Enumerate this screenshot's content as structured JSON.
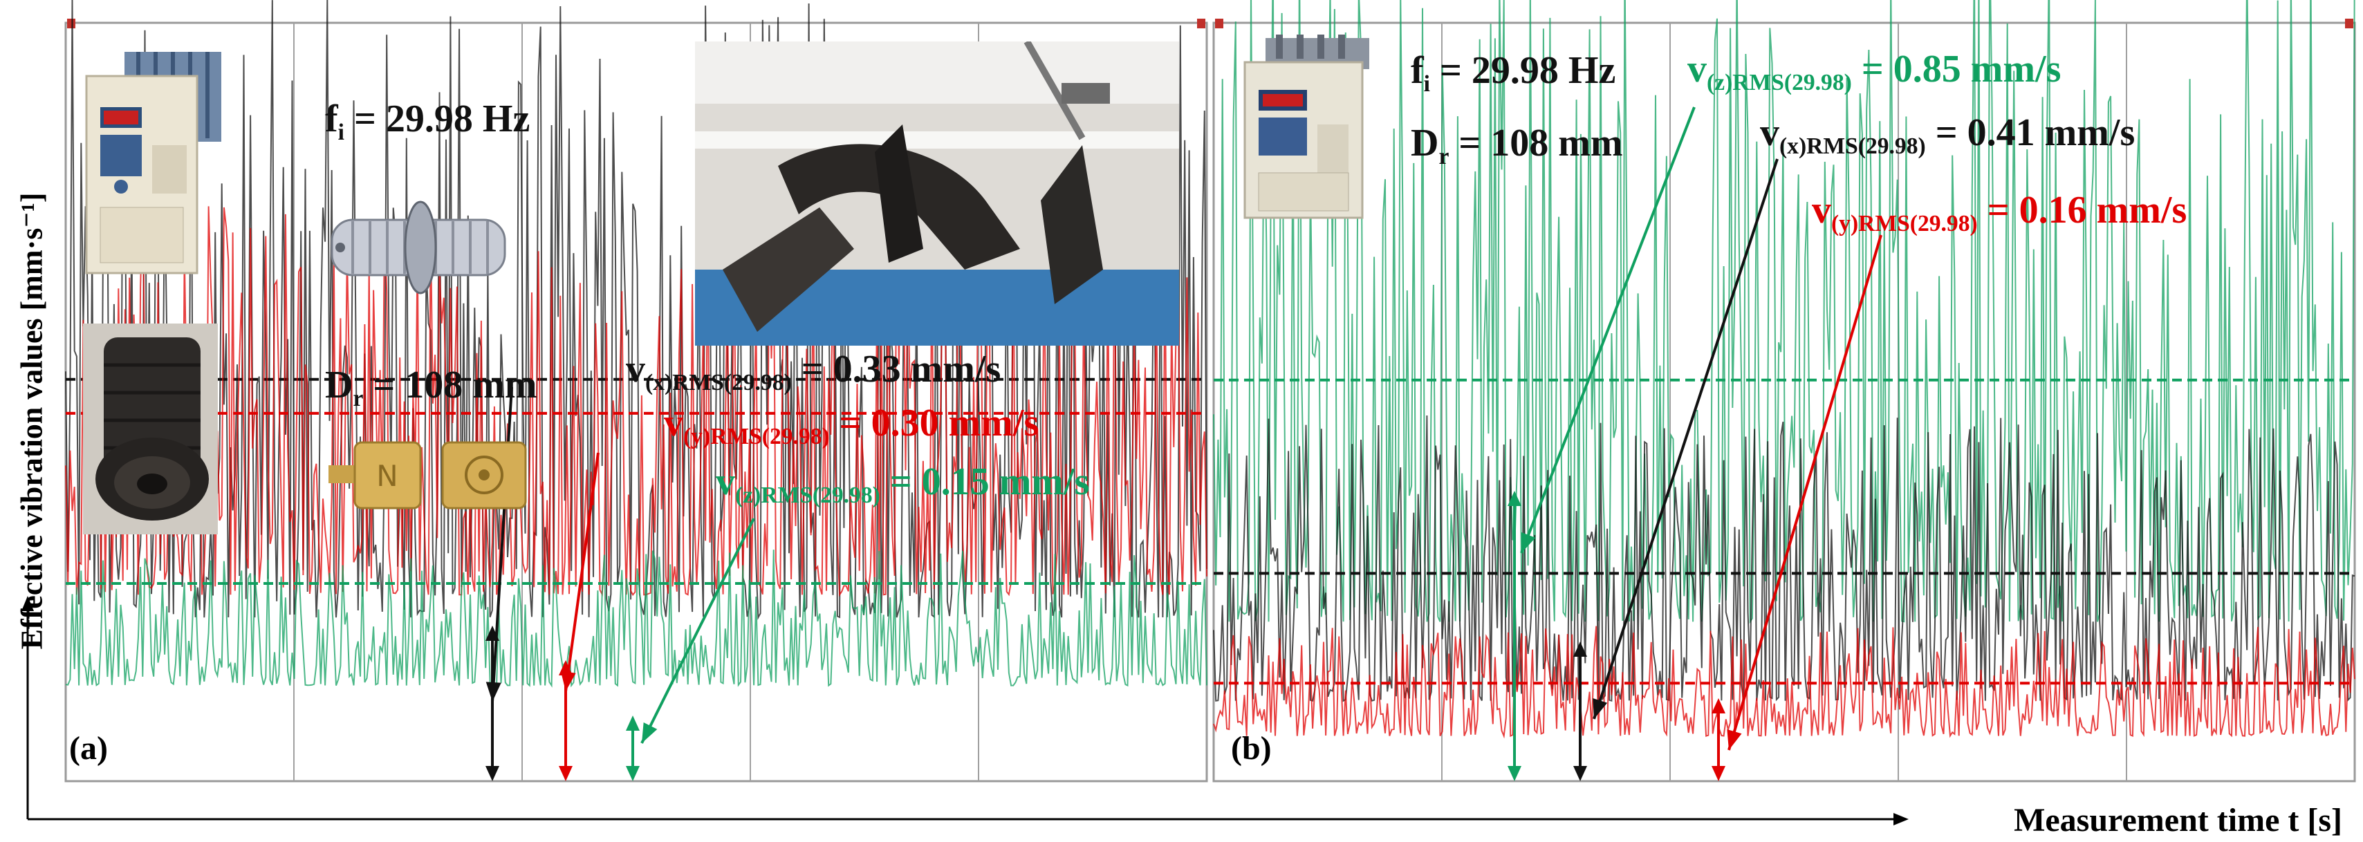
{
  "figure": {
    "y_axis_label": "Effective vibration values [mm·s⁻¹]",
    "x_axis_label": "Measurement time t [s]",
    "colors": {
      "x": "#111111",
      "y": "#e00000",
      "z": "#10a060",
      "grid": "#a0a0a0",
      "frame_marker": "#c0302a"
    }
  },
  "panels": [
    {
      "id": "a",
      "letter": "(a)",
      "freq": {
        "base": "f",
        "sub": "i",
        "rest": " = 29.98 Hz"
      },
      "diam": {
        "base": "D",
        "sub": "r",
        "rest": " = 108 mm"
      },
      "annotations": [
        {
          "axis": "x",
          "base": "v",
          "sub": "(x)RMS(29.98)",
          "rest": " = 0.33 mm/s"
        },
        {
          "axis": "y",
          "base": "v",
          "sub": "(y)RMS(29.98)",
          "rest": " = 0.30 mm/s"
        },
        {
          "axis": "z",
          "base": "v",
          "sub": "(z)RMS(29.98)",
          "rest": " = 0.15 mm/s"
        }
      ],
      "photos": [
        "frequency-inverter-photo",
        "roller-cad-model",
        "roller-photo",
        "accelerometer-sensors-photo",
        "test-rig-photo"
      ]
    },
    {
      "id": "b",
      "letter": "(b)",
      "freq": {
        "base": "f",
        "sub": "i",
        "rest": " = 29.98 Hz"
      },
      "diam": {
        "base": "D",
        "sub": "r",
        "rest": " = 108 mm"
      },
      "annotations": [
        {
          "axis": "z",
          "base": "v",
          "sub": "(z)RMS(29.98)",
          "rest": " = 0.85 mm/s"
        },
        {
          "axis": "x",
          "base": "v",
          "sub": "(x)RMS(29.98)",
          "rest": " = 0.41 mm/s"
        },
        {
          "axis": "y",
          "base": "v",
          "sub": "(y)RMS(29.98)",
          "rest": " = 0.16 mm/s"
        }
      ],
      "photos": [
        "frequency-inverter-photo"
      ]
    }
  ],
  "chart_data": [
    {
      "type": "line",
      "panel": "a",
      "xlabel": "Measurement time t [s]",
      "ylabel": "Effective vibration values [mm·s⁻¹]",
      "grid": true,
      "series": [
        {
          "name": "v(x)RMS(29.98)",
          "color": "#111111",
          "rms": 0.33,
          "amplitude": 0.55,
          "min": 0.12
        },
        {
          "name": "v(y)RMS(29.98)",
          "color": "#e00000",
          "rms": 0.3,
          "amplitude": 0.35,
          "min": 0.14
        },
        {
          "name": "v(z)RMS(29.98)",
          "color": "#10a060",
          "rms": 0.15,
          "amplitude": 0.12,
          "min": 0.06
        }
      ]
    },
    {
      "type": "line",
      "panel": "b",
      "xlabel": "Measurement time t [s]",
      "ylabel": "Effective vibration values [mm·s⁻¹]",
      "grid": true,
      "series": [
        {
          "name": "v(z)RMS(29.98)",
          "color": "#10a060",
          "rms": 0.85,
          "amplitude": 1.55,
          "min": 0.3
        },
        {
          "name": "v(x)RMS(29.98)",
          "color": "#111111",
          "rms": 0.41,
          "amplitude": 0.65,
          "min": 0.12
        },
        {
          "name": "v(y)RMS(29.98)",
          "color": "#e00000",
          "rms": 0.16,
          "amplitude": 0.25,
          "min": 0.04
        }
      ]
    }
  ]
}
